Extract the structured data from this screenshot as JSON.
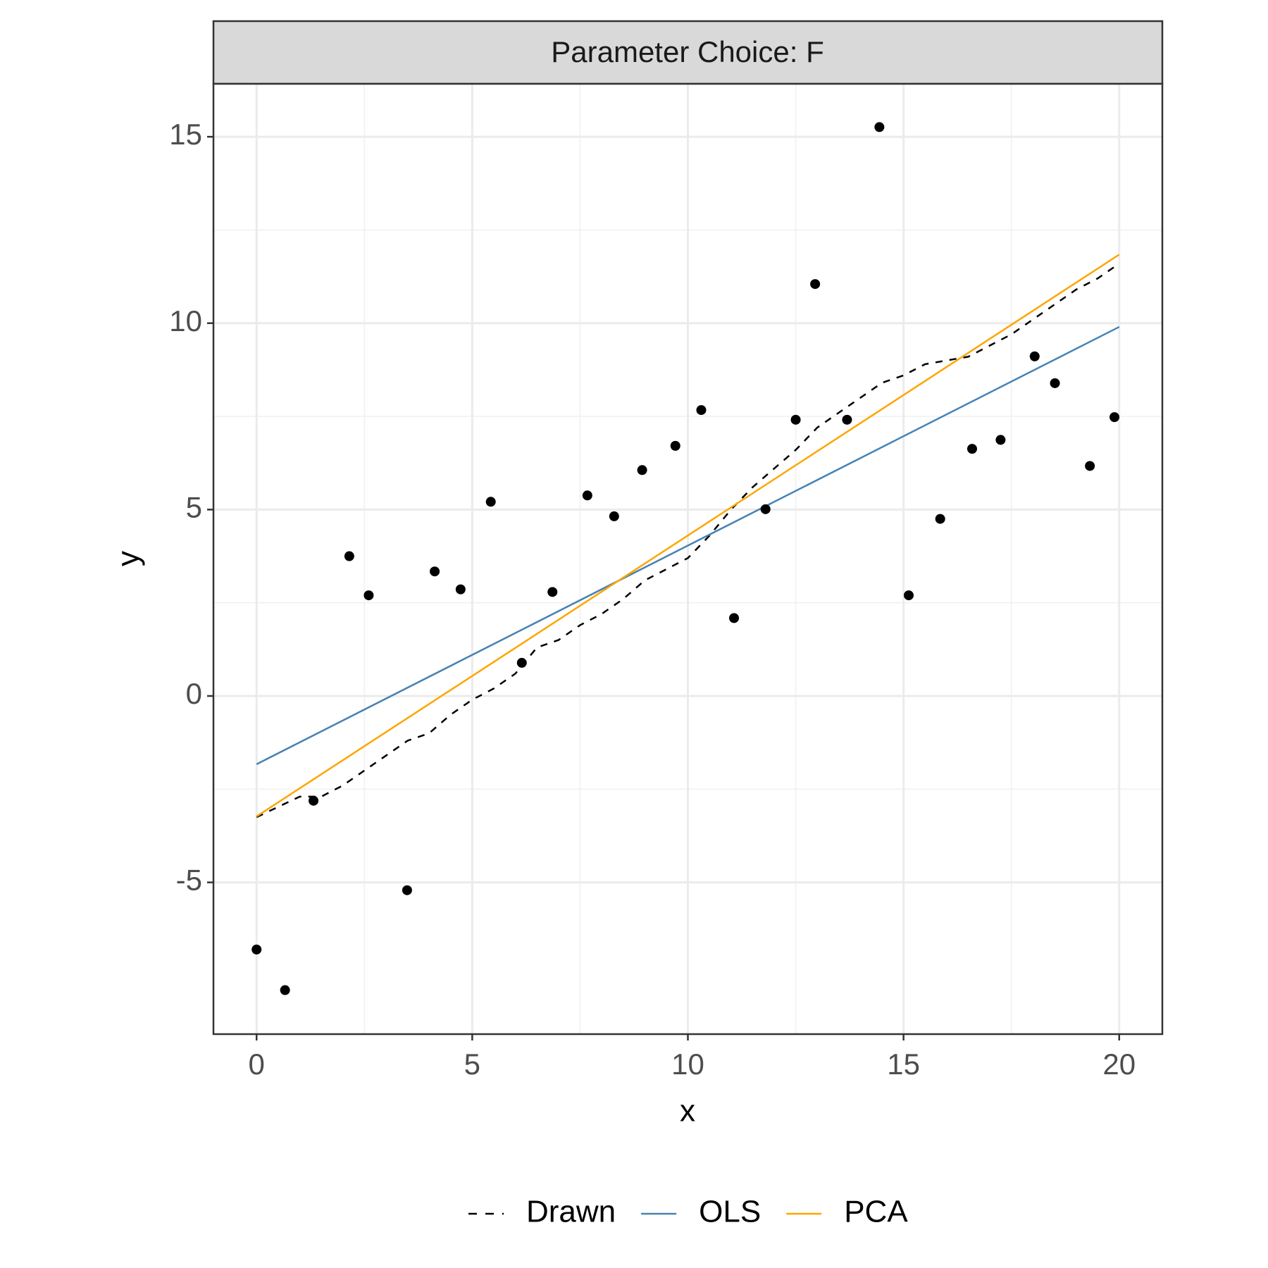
{
  "chart_data": {
    "type": "scatter",
    "strip_title": "Parameter Choice: F",
    "x_label": "x",
    "y_label": "y",
    "xlim": [
      -1.0,
      21.0
    ],
    "ylim": [
      -9.07,
      16.42
    ],
    "xticks": [
      0,
      5,
      10,
      15,
      20
    ],
    "yticks": [
      {
        "value": -5,
        "label": "-5"
      },
      0,
      5,
      10,
      15
    ],
    "grid": true,
    "legend_position": "bottom",
    "points": {
      "color": "#000000",
      "x": [
        0,
        0.66,
        1.32,
        2.15,
        2.6,
        3.49,
        4.13,
        4.73,
        5.43,
        6.15,
        6.86,
        7.67,
        8.29,
        8.94,
        9.71,
        10.31,
        11.07,
        11.8,
        12.5,
        12.95,
        13.69,
        14.44,
        15.12,
        15.85,
        16.59,
        17.25,
        18.04,
        18.51,
        19.32,
        19.89
      ],
      "y": [
        -6.8,
        -7.89,
        -2.81,
        3.75,
        2.7,
        -5.21,
        3.34,
        2.86,
        5.21,
        0.89,
        2.79,
        5.38,
        4.82,
        6.06,
        6.71,
        7.67,
        2.09,
        5.01,
        7.41,
        11.05,
        7.41,
        15.26,
        2.7,
        4.75,
        6.63,
        6.87,
        9.11,
        8.39,
        6.17,
        7.48
      ]
    },
    "series": [
      {
        "name": "Drawn",
        "color": "#000000",
        "dashed": true,
        "x": [
          0,
          1,
          1.5,
          2,
          2.5,
          3,
          3.5,
          4,
          4.5,
          5,
          5.5,
          6,
          6.5,
          7,
          7.5,
          8,
          8.5,
          9,
          9.5,
          10,
          10.5,
          11,
          11.5,
          12,
          12.5,
          13,
          13.5,
          14,
          14.5,
          15,
          15.5,
          16,
          16.5,
          17,
          17.5,
          18,
          18.5,
          19,
          19.5,
          20
        ],
        "values": [
          -3.25,
          -2.7,
          -2.7,
          -2.4,
          -2.0,
          -1.6,
          -1.2,
          -1.0,
          -0.5,
          -0.1,
          0.2,
          0.6,
          1.3,
          1.5,
          1.9,
          2.2,
          2.6,
          3.1,
          3.4,
          3.7,
          4.3,
          5.0,
          5.6,
          6.1,
          6.6,
          7.2,
          7.6,
          8.0,
          8.4,
          8.6,
          8.9,
          9.0,
          9.1,
          9.4,
          9.7,
          10.1,
          10.5,
          10.9,
          11.2,
          11.6
        ]
      },
      {
        "name": "OLS",
        "color": "#4682b4",
        "dashed": false,
        "x": [
          0,
          20
        ],
        "values": [
          -1.83,
          9.9
        ]
      },
      {
        "name": "PCA",
        "color": "#ffa500",
        "dashed": false,
        "x": [
          0,
          20
        ],
        "values": [
          -3.23,
          11.84
        ]
      }
    ]
  }
}
